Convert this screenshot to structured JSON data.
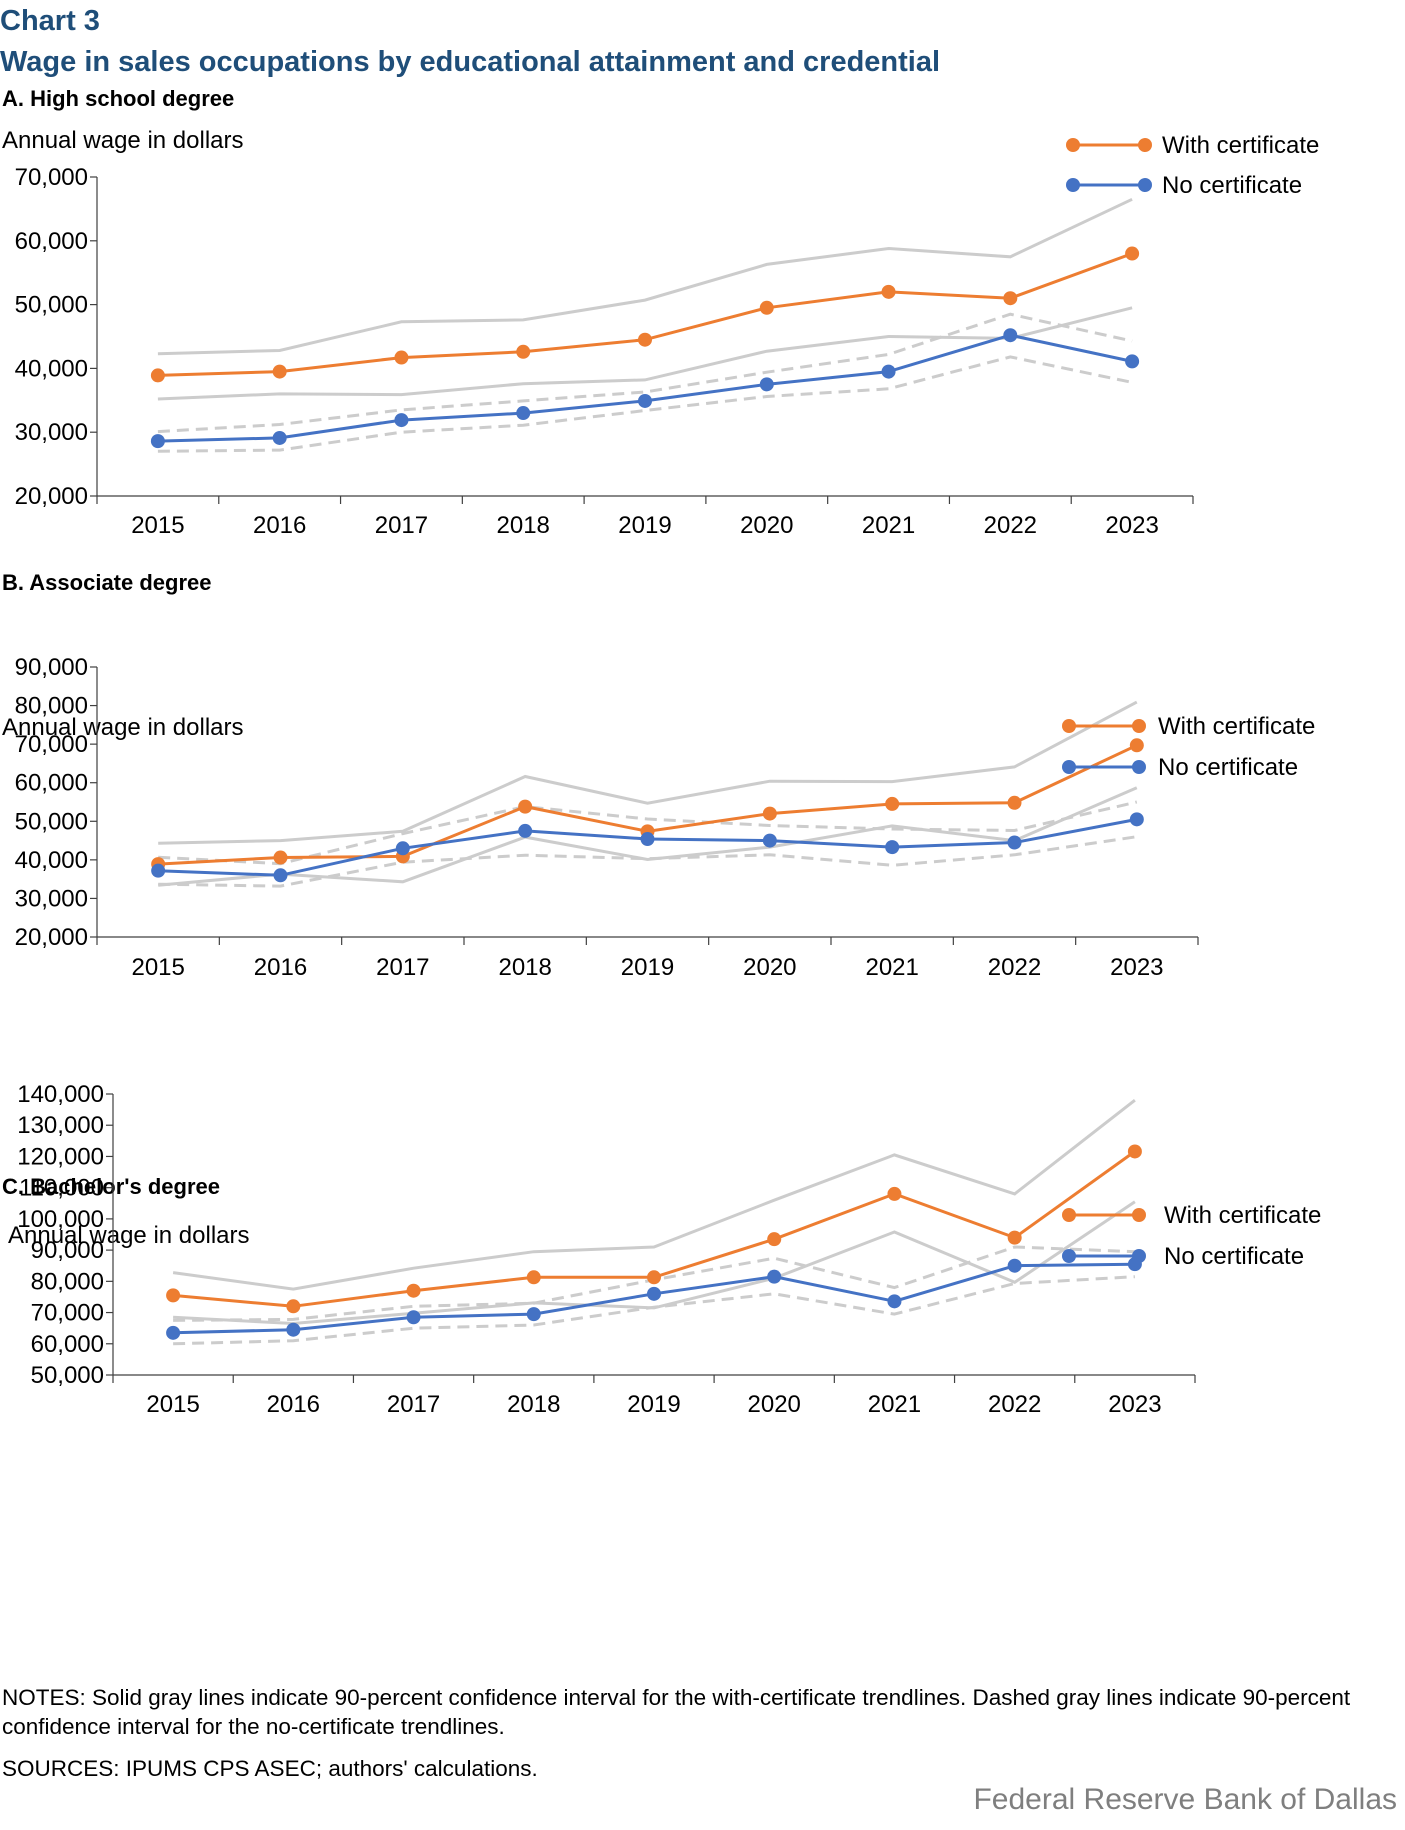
{
  "header": {
    "chart_number": "Chart 3",
    "title": "Wage in sales occupations by educational attainment and credential"
  },
  "colors": {
    "with_certificate": "#ed7d31",
    "no_certificate": "#4472c4",
    "confidence_interval": "#cccccc"
  },
  "chart_data": [
    {
      "type": "line",
      "panel_title": "A. High school degree",
      "ylabel": "Annual wage in dollars",
      "ylim": [
        20000,
        70000
      ],
      "yticks": [
        20000,
        30000,
        40000,
        50000,
        60000,
        70000
      ],
      "ytick_labels": [
        "20,000",
        "30,000",
        "40,000",
        "50,000",
        "60,000",
        "70,000"
      ],
      "categories": [
        "2015",
        "2016",
        "2017",
        "2018",
        "2019",
        "2020",
        "2021",
        "2022",
        "2023"
      ],
      "series": [
        {
          "name": "With certificate",
          "values": [
            38900,
            39500,
            41700,
            42600,
            44500,
            49500,
            52000,
            51000,
            58000
          ]
        },
        {
          "name": "No certificate",
          "values": [
            28600,
            29100,
            31900,
            33000,
            34900,
            37500,
            39500,
            45200,
            41100
          ]
        }
      ],
      "confidence_intervals": {
        "with_certificate_upper": [
          42300,
          42800,
          47300,
          47600,
          50700,
          56300,
          58800,
          57500,
          66500
        ],
        "with_certificate_lower": [
          35200,
          36000,
          35900,
          37600,
          38200,
          42700,
          45000,
          44700,
          49500
        ],
        "no_certificate_upper": [
          30100,
          31200,
          33500,
          34900,
          36300,
          39400,
          42200,
          48500,
          44300
        ],
        "no_certificate_lower": [
          27000,
          27200,
          30000,
          31100,
          33400,
          35600,
          36800,
          41800,
          37800
        ]
      }
    },
    {
      "type": "line",
      "panel_title": "B. Associate degree",
      "ylabel": "Annual wage in dollars",
      "ylim": [
        20000,
        90000
      ],
      "yticks": [
        20000,
        30000,
        40000,
        50000,
        60000,
        70000,
        80000,
        90000
      ],
      "ytick_labels": [
        "20,000",
        "30,000",
        "40,000",
        "50,000",
        "60,000",
        "70,000",
        "80,000",
        "90,000"
      ],
      "categories": [
        "2015",
        "2016",
        "2017",
        "2018",
        "2019",
        "2020",
        "2021",
        "2022",
        "2023"
      ],
      "series": [
        {
          "name": "With certificate",
          "values": [
            38900,
            40600,
            40900,
            53800,
            47400,
            52000,
            54500,
            54800,
            69700
          ]
        },
        {
          "name": "No certificate",
          "values": [
            37200,
            36000,
            43000,
            47500,
            45400,
            45000,
            43300,
            44500,
            50500
          ]
        }
      ],
      "confidence_intervals": {
        "with_certificate_upper": [
          44300,
          45000,
          47400,
          61600,
          54700,
          60400,
          60300,
          64100,
          80900
        ],
        "with_certificate_lower": [
          33400,
          36300,
          34300,
          45900,
          40100,
          43300,
          48800,
          45000,
          58700
        ],
        "no_certificate_upper": [
          40700,
          39000,
          46800,
          53800,
          50600,
          48900,
          48000,
          47600,
          55000
        ],
        "no_certificate_lower": [
          33700,
          33200,
          39400,
          41200,
          40300,
          41300,
          38600,
          41300,
          46000
        ]
      }
    },
    {
      "type": "line",
      "panel_title": "C. Bachelor's degree",
      "ylabel": "Annual wage in dollars",
      "ylim": [
        50000,
        140000
      ],
      "yticks": [
        50000,
        60000,
        70000,
        80000,
        90000,
        100000,
        110000,
        120000,
        130000,
        140000
      ],
      "ytick_labels": [
        "50,000",
        "60,000",
        "70,000",
        "80,000",
        "90,000",
        "100,000",
        "110,000",
        "120,000",
        "130,000",
        "140,000"
      ],
      "categories": [
        "2015",
        "2016",
        "2017",
        "2018",
        "2019",
        "2020",
        "2021",
        "2022",
        "2023"
      ],
      "series": [
        {
          "name": "With certificate",
          "values": [
            75500,
            72000,
            77000,
            81300,
            81300,
            93500,
            108000,
            94000,
            121600
          ]
        },
        {
          "name": "No certificate",
          "values": [
            63500,
            64500,
            68500,
            69500,
            76000,
            81500,
            73600,
            85000,
            85500
          ]
        }
      ],
      "confidence_intervals": {
        "with_certificate_upper": [
          82800,
          77500,
          84200,
          89500,
          91000,
          106000,
          120500,
          108000,
          138000
        ],
        "with_certificate_lower": [
          68500,
          66500,
          69800,
          73100,
          71500,
          81000,
          95800,
          79700,
          105500
        ],
        "no_certificate_upper": [
          67500,
          67800,
          72000,
          73000,
          80500,
          87400,
          78000,
          91000,
          89500
        ],
        "no_certificate_lower": [
          60000,
          61000,
          65000,
          66000,
          71700,
          76000,
          69500,
          79300,
          81500
        ]
      }
    }
  ],
  "notes": "NOTES: Solid gray lines indicate 90-percent confidence interval for the with-certificate trendlines. Dashed gray lines indicate 90-percent confidence interval for the no-certificate trendlines.",
  "sources": "SOURCES: IPUMS CPS ASEC; authors' calculations.",
  "footer": "Federal Reserve Bank of Dallas"
}
